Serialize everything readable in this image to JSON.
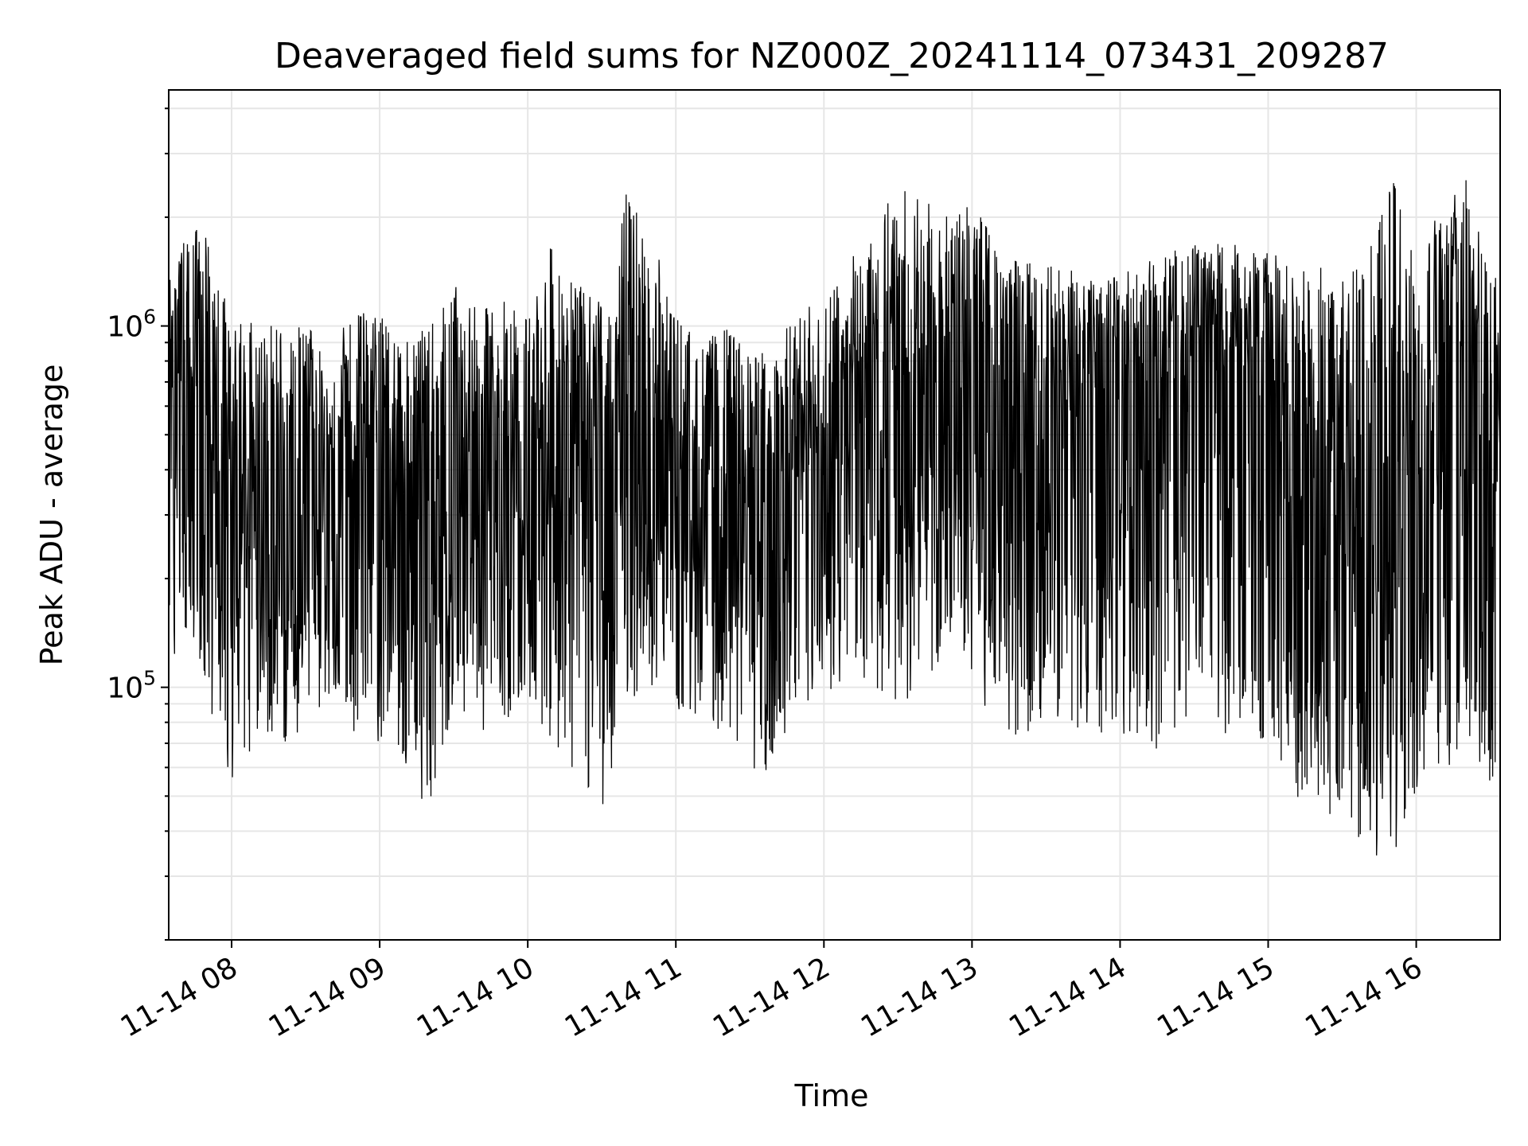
{
  "chart_data": {
    "type": "line",
    "title": "Deaveraged field sums for NZ000Z_20241114_073431_209287",
    "xlabel": "Time",
    "ylabel": "Peak ADU - average",
    "yscale": "log",
    "ylim": [
      20000,
      4500000
    ],
    "xlim": [
      "2024-11-14 07:34:31",
      "2024-11-14 16:34:00"
    ],
    "grid": true,
    "line_color": "#000000",
    "grid_color": "#e6e6e6",
    "x_ticks": [
      {
        "value": "2024-11-14 08:00",
        "label": "11-14 08"
      },
      {
        "value": "2024-11-14 09:00",
        "label": "11-14 09"
      },
      {
        "value": "2024-11-14 10:00",
        "label": "11-14 10"
      },
      {
        "value": "2024-11-14 11:00",
        "label": "11-14 11"
      },
      {
        "value": "2024-11-14 12:00",
        "label": "11-14 12"
      },
      {
        "value": "2024-11-14 13:00",
        "label": "11-14 13"
      },
      {
        "value": "2024-11-14 14:00",
        "label": "11-14 14"
      },
      {
        "value": "2024-11-14 15:00",
        "label": "11-14 15"
      },
      {
        "value": "2024-11-14 16:00",
        "label": "11-14 16"
      }
    ],
    "y_major_ticks": [
      {
        "value": 100000,
        "base": "10",
        "exp": "5"
      },
      {
        "value": 1000000,
        "base": "10",
        "exp": "6"
      }
    ],
    "series": [
      {
        "x": [
          "2024-11-14 07:34",
          "2024-11-14 07:40",
          "2024-11-14 07:50",
          "2024-11-14 08:00",
          "2024-11-14 08:10",
          "2024-11-14 08:20",
          "2024-11-14 08:30",
          "2024-11-14 08:40",
          "2024-11-14 08:50",
          "2024-11-14 09:00",
          "2024-11-14 09:10",
          "2024-11-14 09:20",
          "2024-11-14 09:30",
          "2024-11-14 09:40",
          "2024-11-14 09:50",
          "2024-11-14 10:00",
          "2024-11-14 10:10",
          "2024-11-14 10:20",
          "2024-11-14 10:30",
          "2024-11-14 10:40",
          "2024-11-14 10:50",
          "2024-11-14 11:00",
          "2024-11-14 11:10",
          "2024-11-14 11:20",
          "2024-11-14 11:30",
          "2024-11-14 11:40",
          "2024-11-14 11:50",
          "2024-11-14 12:00",
          "2024-11-14 12:10",
          "2024-11-14 12:20",
          "2024-11-14 12:30",
          "2024-11-14 12:40",
          "2024-11-14 12:50",
          "2024-11-14 13:00",
          "2024-11-14 13:10",
          "2024-11-14 13:20",
          "2024-11-14 13:30",
          "2024-11-14 13:40",
          "2024-11-14 13:50",
          "2024-11-14 14:00",
          "2024-11-14 14:10",
          "2024-11-14 14:20",
          "2024-11-14 14:30",
          "2024-11-14 14:40",
          "2024-11-14 14:50",
          "2024-11-14 15:00",
          "2024-11-14 15:10",
          "2024-11-14 15:20",
          "2024-11-14 15:30",
          "2024-11-14 15:40",
          "2024-11-14 15:50",
          "2024-11-14 16:00",
          "2024-11-14 16:10",
          "2024-11-14 16:20",
          "2024-11-14 16:30"
        ],
        "envelope_high": [
          1300000,
          1700000,
          2000000,
          1000000,
          1100000,
          1000000,
          1000000,
          900000,
          1100000,
          1100000,
          900000,
          1000000,
          1300000,
          1100000,
          1200000,
          1100000,
          1700000,
          1300000,
          1200000,
          2400000,
          1800000,
          1100000,
          900000,
          1000000,
          850000,
          900000,
          1100000,
          1200000,
          1500000,
          2000000,
          2500000,
          2300000,
          2000000,
          2300000,
          1700000,
          1500000,
          1600000,
          1500000,
          1300000,
          1400000,
          1500000,
          1600000,
          1700000,
          1700000,
          1700000,
          1600000,
          1500000,
          1500000,
          1400000,
          1500000,
          3000000,
          1600000,
          2200000,
          2600000,
          1400000
        ],
        "envelope_low": [
          95000,
          150000,
          90000,
          55000,
          70000,
          65000,
          80000,
          90000,
          75000,
          70000,
          60000,
          45000,
          85000,
          75000,
          80000,
          90000,
          70000,
          55000,
          45000,
          90000,
          100000,
          85000,
          80000,
          75000,
          60000,
          55000,
          70000,
          90000,
          110000,
          95000,
          90000,
          95000,
          120000,
          95000,
          80000,
          70000,
          85000,
          75000,
          70000,
          75000,
          70000,
          65000,
          80000,
          70000,
          75000,
          70000,
          50000,
          45000,
          40000,
          35000,
          30000,
          45000,
          50000,
          60000,
          45000
        ],
        "typical": [
          500000,
          600000,
          350000,
          250000,
          300000,
          300000,
          350000,
          300000,
          400000,
          400000,
          350000,
          300000,
          400000,
          400000,
          350000,
          350000,
          500000,
          400000,
          350000,
          400000,
          450000,
          350000,
          300000,
          300000,
          250000,
          300000,
          350000,
          400000,
          550000,
          600000,
          650000,
          600000,
          550000,
          700000,
          600000,
          550000,
          600000,
          600000,
          550000,
          600000,
          650000,
          700000,
          700000,
          700000,
          750000,
          700000,
          400000,
          300000,
          250000,
          300000,
          300000,
          300000,
          600000,
          700000,
          200000
        ]
      }
    ]
  }
}
